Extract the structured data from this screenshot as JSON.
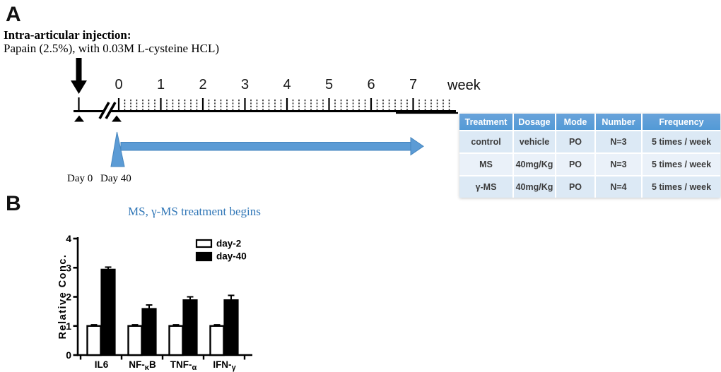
{
  "panelA": {
    "label": "A",
    "injection_title": "Intra-articular injection:",
    "injection_detail": "Papain (2.5%), with 0.03M L-cysteine HCL)",
    "timeline": {
      "weeks": [
        "0",
        "1",
        "2",
        "3",
        "4",
        "5",
        "6",
        "7"
      ],
      "axis_unit": "week",
      "day0_label": "Day 0",
      "day40_label": "Day 40",
      "treatment_note": "MS, γ-MS treatment begins"
    },
    "table": {
      "headers": [
        "Treatment",
        "Dosage",
        "Mode",
        "Number",
        "Frequency"
      ],
      "rows": [
        [
          "control",
          "vehicle",
          "PO",
          "N=3",
          "5 times / week"
        ],
        [
          "MS",
          "40mg/Kg",
          "PO",
          "N=3",
          "5 times / week"
        ],
        [
          "γ-MS",
          "40mg/Kg",
          "PO",
          "N=4",
          "5 times / week"
        ]
      ]
    },
    "colors": {
      "header_blue": "#539ad6",
      "row_blue": "#dce9f5",
      "row_blue_light": "#eaf1f9",
      "arrow_blue": "#5b9bd5",
      "arrow_blue_dark": "#4585be",
      "note_text_blue": "#2e75b6"
    }
  },
  "panelB": {
    "label": "B"
  },
  "chart_data": {
    "type": "bar",
    "title": "",
    "xlabel": "",
    "ylabel": "Relative Conc.",
    "categories": [
      "IL6",
      "NF-κB",
      "TNF-α",
      "IFN-γ"
    ],
    "category_parts": [
      {
        "pre": "IL6",
        "sub": "",
        "post": ""
      },
      {
        "pre": "NF-",
        "sub": "κ",
        "post": "B"
      },
      {
        "pre": "TNF-",
        "sub": "α",
        "post": ""
      },
      {
        "pre": "IFN-",
        "sub": "γ",
        "post": ""
      }
    ],
    "series": [
      {
        "name": "day-2",
        "fill": "#ffffff",
        "values": [
          1.0,
          1.0,
          1.0,
          1.0
        ],
        "errors": [
          0.04,
          0.04,
          0.04,
          0.04
        ]
      },
      {
        "name": "day-40",
        "fill": "#000000",
        "values": [
          2.95,
          1.6,
          1.9,
          1.9
        ],
        "errors": [
          0.07,
          0.12,
          0.1,
          0.15
        ]
      }
    ],
    "ylim": [
      0,
      4
    ],
    "yticks": [
      0,
      1,
      2,
      3,
      4
    ],
    "grid": false,
    "legend_position": "top-right",
    "bar_colors": {
      "day-2": "#ffffff",
      "day-40": "#000000"
    }
  }
}
